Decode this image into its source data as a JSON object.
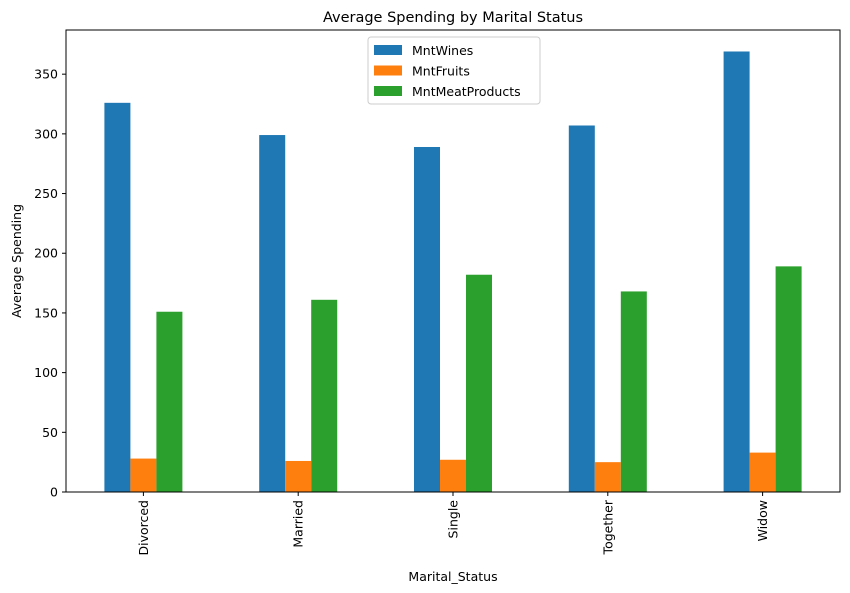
{
  "chart_data": {
    "type": "bar",
    "title": "Average Spending by Marital Status",
    "xlabel": "Marital_Status",
    "ylabel": "Average Spending",
    "categories": [
      "Divorced",
      "Married",
      "Single",
      "Together",
      "Widow"
    ],
    "series": [
      {
        "name": "MntWines",
        "color": "#1f77b4",
        "values": [
          326,
          299,
          289,
          307,
          369
        ]
      },
      {
        "name": "MntFruits",
        "color": "#ff7f0e",
        "values": [
          28,
          26,
          27,
          25,
          33
        ]
      },
      {
        "name": "MntMeatProducts",
        "color": "#2ca02c",
        "values": [
          151,
          161,
          182,
          168,
          189
        ]
      }
    ],
    "ylim": [
      0,
      387
    ],
    "yticks": [
      0,
      50,
      100,
      150,
      200,
      250,
      300,
      350
    ],
    "grid": false,
    "legend_position": "top-center"
  }
}
